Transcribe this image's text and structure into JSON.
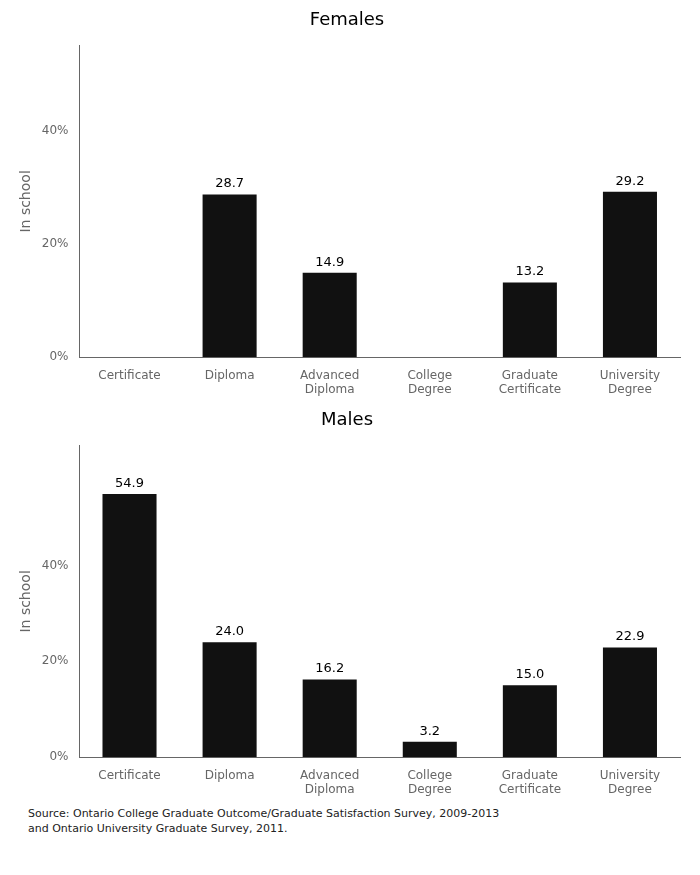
{
  "chart_data": [
    {
      "type": "bar",
      "title": "Females",
      "categories": [
        "Certificate",
        "Diploma",
        "Advanced\nDiploma",
        "College\nDegree",
        "Graduate\nCertificate",
        "University\nDegree"
      ],
      "values": [
        0,
        28.7,
        14.9,
        0,
        13.2,
        29.2
      ],
      "value_labels": [
        null,
        "28.7",
        "14.9",
        null,
        "13.2",
        "29.2"
      ],
      "data_labels": true,
      "color": "#111111",
      "ylabel": "In school",
      "ylim": [
        0,
        55
      ],
      "yticks": [
        {
          "value": 0,
          "label": "0%"
        },
        {
          "value": 20,
          "label": "20%"
        },
        {
          "value": 40,
          "label": "40%"
        }
      ],
      "grid": false
    },
    {
      "type": "bar",
      "title": "Males",
      "categories": [
        "Certificate",
        "Diploma",
        "Advanced\nDiploma",
        "College\nDegree",
        "Graduate\nCertificate",
        "University\nDegree"
      ],
      "values": [
        54.9,
        24.0,
        16.2,
        3.2,
        15.0,
        22.9
      ],
      "value_labels": [
        "54.9",
        "24.0",
        "16.2",
        "3.2",
        "15.0",
        "22.9"
      ],
      "data_labels": true,
      "color": "#111111",
      "ylabel": "In school",
      "ylim": [
        0,
        65
      ],
      "yticks": [
        {
          "value": 0,
          "label": "0%"
        },
        {
          "value": 20,
          "label": "20%"
        },
        {
          "value": 40,
          "label": "40%"
        }
      ],
      "grid": false,
      "annotation": "Source: Ontario College Graduate Outcome/Graduate Satisfaction Survey, 2009-2013\nand Ontario University Graduate Survey, 2011."
    }
  ]
}
